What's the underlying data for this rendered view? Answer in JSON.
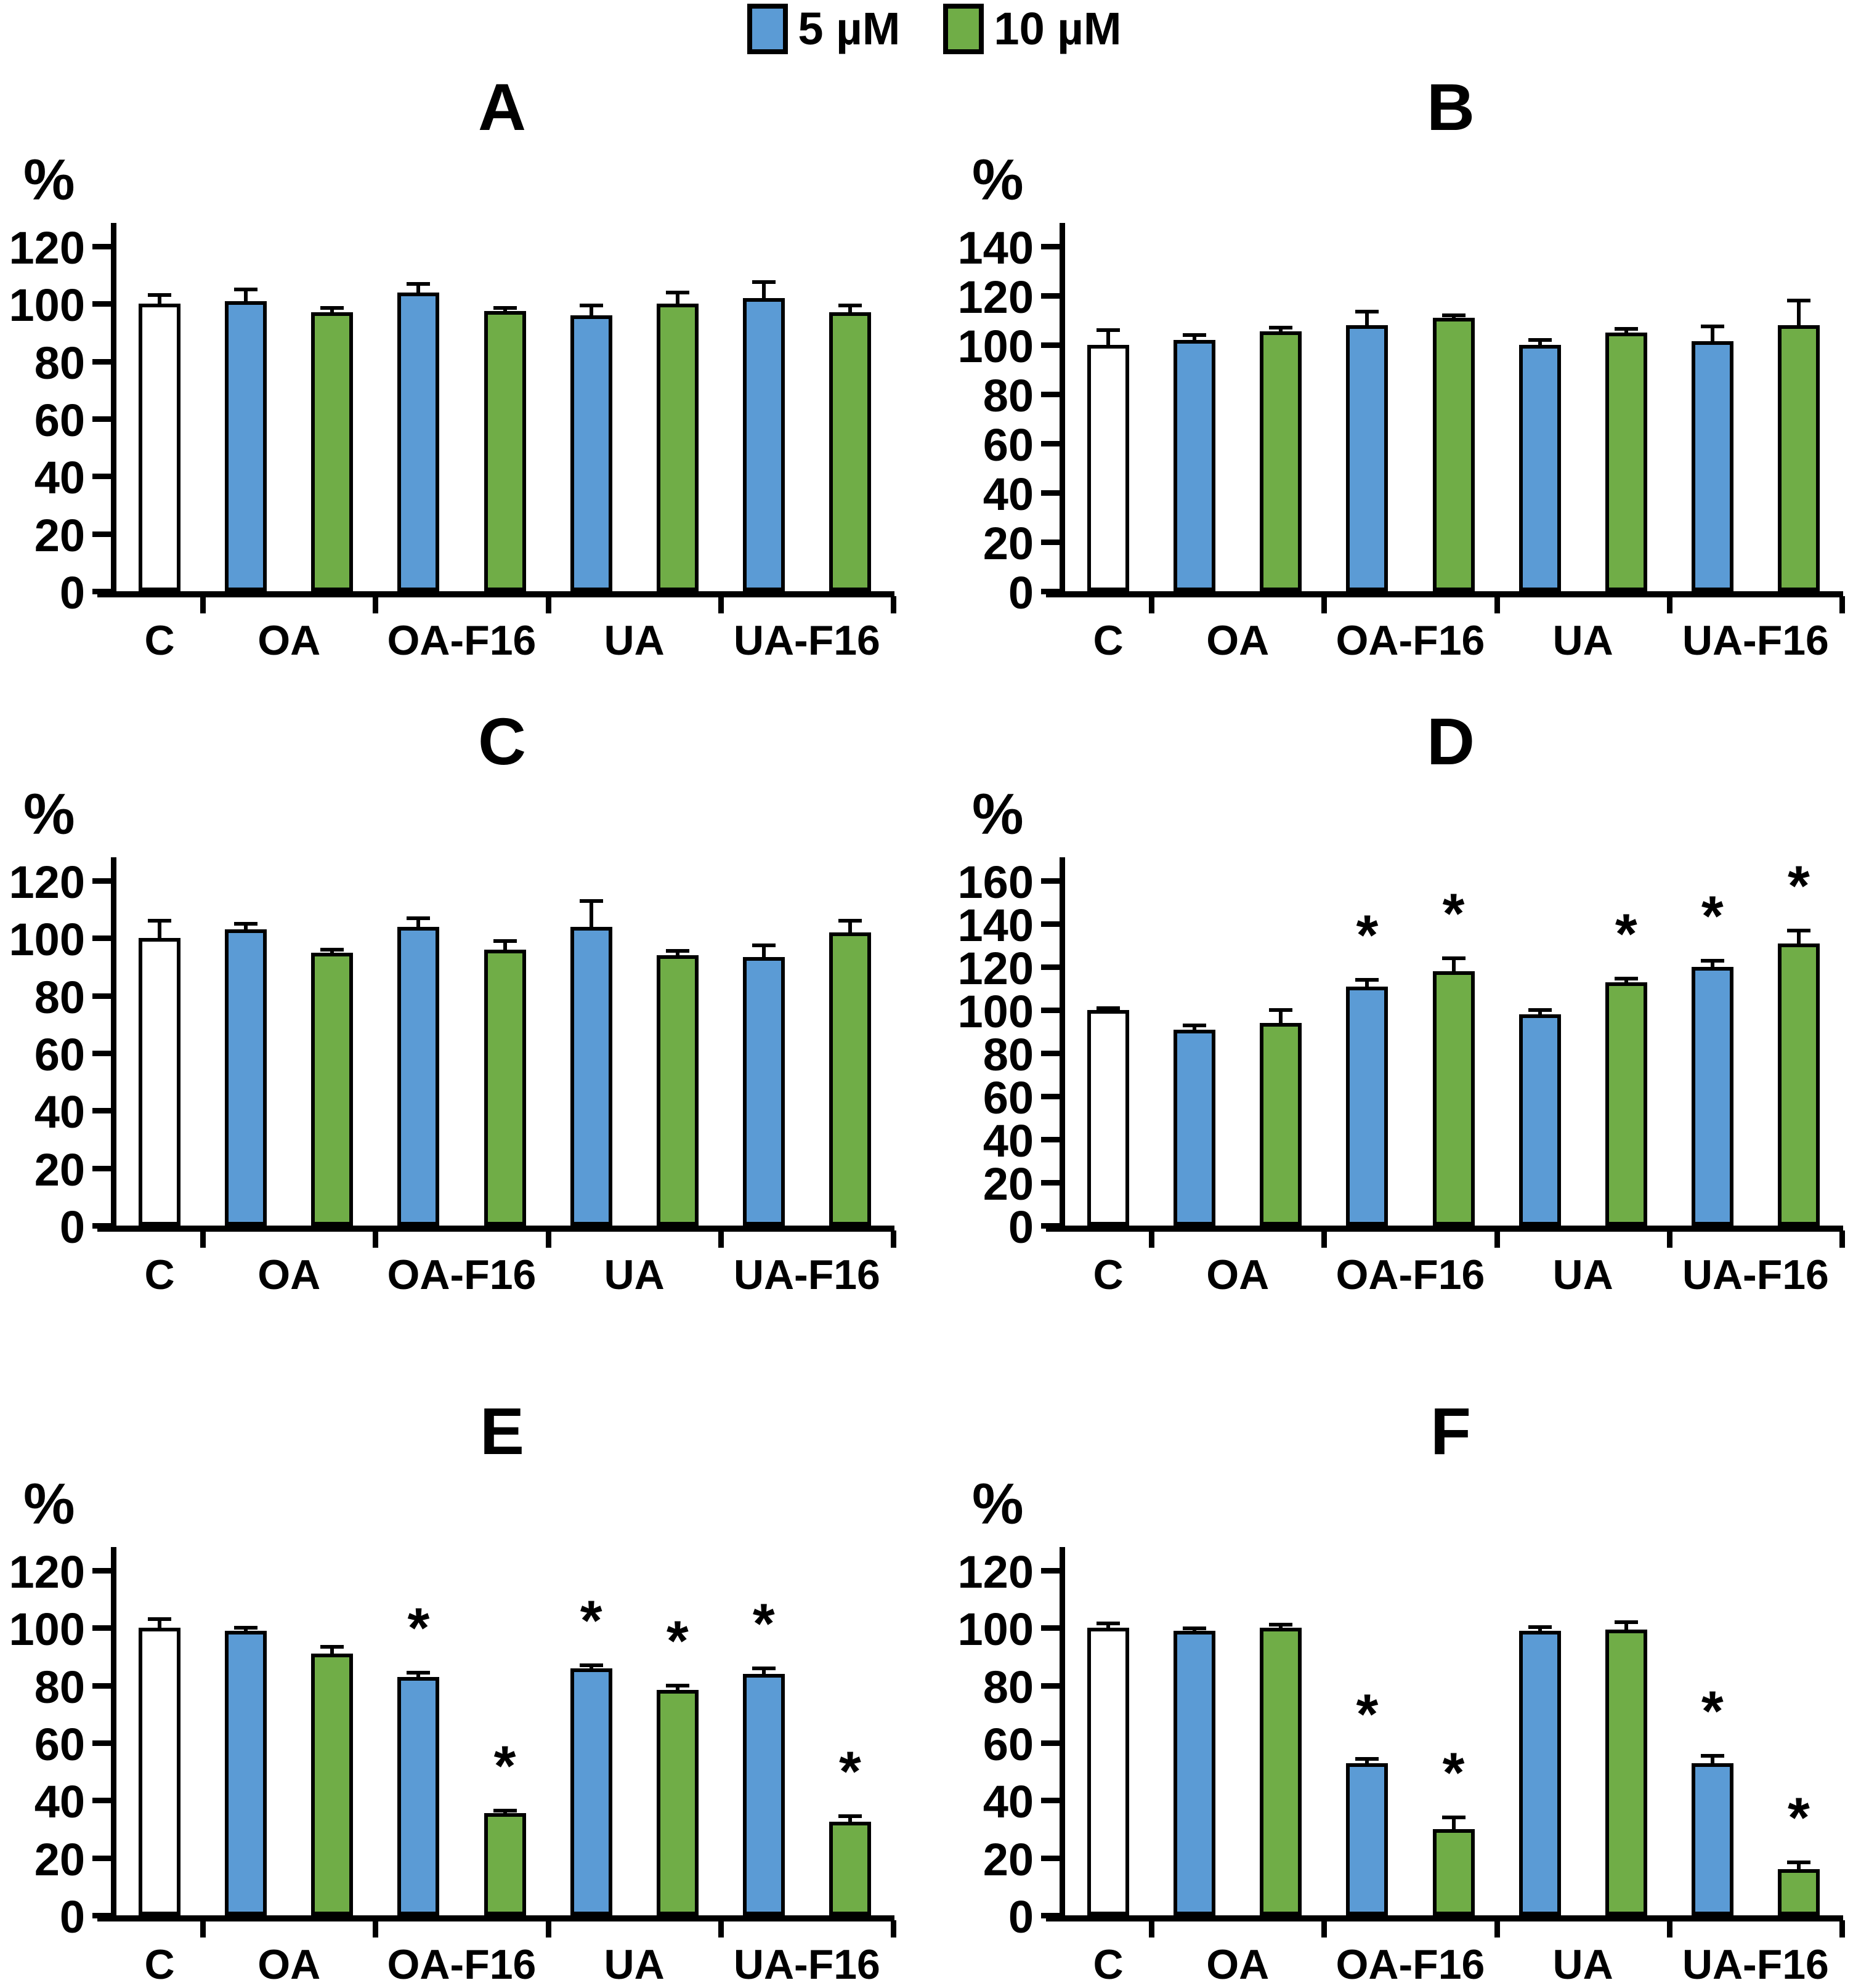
{
  "figure": {
    "ylabel_symbol": "%",
    "sig_marker": "*"
  },
  "colors": {
    "blue": "#5B9BD5",
    "green": "#70AD47",
    "control": "#FFFFFF",
    "axis": "#000000"
  },
  "series_colors": {
    "control": "#FFFFFF",
    "5 µM": "#5B9BD5",
    "10 µM": "#70AD47"
  },
  "legend": {
    "position": "top-center",
    "items": [
      {
        "label": "5 µM",
        "color": "#5B9BD5"
      },
      {
        "label": "10 µM",
        "color": "#70AD47"
      }
    ]
  },
  "chart_data": [
    {
      "type": "bar",
      "title": "A",
      "ylabel": "%",
      "ylim": [
        0,
        120
      ],
      "yticks": [
        0,
        20,
        40,
        60,
        80,
        100,
        120
      ],
      "grid": false,
      "categories": [
        "C",
        "OA",
        "OA-F16",
        "UA",
        "UA-F16"
      ],
      "groups": [
        {
          "label": "C",
          "bars": [
            {
              "series": "control",
              "value": 100,
              "error": 3,
              "sig": false
            }
          ]
        },
        {
          "label": "OA",
          "bars": [
            {
              "series": "5 µM",
              "value": 101,
              "error": 4,
              "sig": false
            },
            {
              "series": "10 µM",
              "value": 97,
              "error": 1.5,
              "sig": false
            }
          ]
        },
        {
          "label": "OA-F16",
          "bars": [
            {
              "series": "5 µM",
              "value": 104,
              "error": 3,
              "sig": false
            },
            {
              "series": "10 µM",
              "value": 97.5,
              "error": 1,
              "sig": false
            }
          ]
        },
        {
          "label": "UA",
          "bars": [
            {
              "series": "5 µM",
              "value": 96,
              "error": 3.5,
              "sig": false
            },
            {
              "series": "10 µM",
              "value": 100,
              "error": 4,
              "sig": false
            }
          ]
        },
        {
          "label": "UA-F16",
          "bars": [
            {
              "series": "5 µM",
              "value": 102,
              "error": 5.5,
              "sig": false
            },
            {
              "series": "10 µM",
              "value": 97,
              "error": 2.5,
              "sig": false
            }
          ]
        }
      ]
    },
    {
      "type": "bar",
      "title": "B",
      "ylabel": "%",
      "ylim": [
        0,
        140
      ],
      "yticks": [
        0,
        20,
        40,
        60,
        80,
        100,
        120,
        140
      ],
      "grid": false,
      "categories": [
        "C",
        "OA",
        "OA-F16",
        "UA",
        "UA-F16"
      ],
      "groups": [
        {
          "label": "C",
          "bars": [
            {
              "series": "control",
              "value": 100,
              "error": 6,
              "sig": false
            }
          ]
        },
        {
          "label": "OA",
          "bars": [
            {
              "series": "5 µM",
              "value": 102,
              "error": 2,
              "sig": false
            },
            {
              "series": "10 µM",
              "value": 105.5,
              "error": 1.5,
              "sig": false
            }
          ]
        },
        {
          "label": "OA-F16",
          "bars": [
            {
              "series": "5 µM",
              "value": 108,
              "error": 5.5,
              "sig": false
            },
            {
              "series": "10 µM",
              "value": 111,
              "error": 1,
              "sig": false
            }
          ]
        },
        {
          "label": "UA",
          "bars": [
            {
              "series": "5 µM",
              "value": 100,
              "error": 2,
              "sig": false
            },
            {
              "series": "10 µM",
              "value": 105,
              "error": 1.5,
              "sig": false
            }
          ]
        },
        {
          "label": "UA-F16",
          "bars": [
            {
              "series": "5 µM",
              "value": 101.5,
              "error": 6,
              "sig": false
            },
            {
              "series": "10 µM",
              "value": 108,
              "error": 10,
              "sig": false
            }
          ]
        }
      ]
    },
    {
      "type": "bar",
      "title": "C",
      "ylabel": "%",
      "ylim": [
        0,
        120
      ],
      "yticks": [
        0,
        20,
        40,
        60,
        80,
        100,
        120
      ],
      "grid": false,
      "categories": [
        "C",
        "OA",
        "OA-F16",
        "UA",
        "UA-F16"
      ],
      "groups": [
        {
          "label": "C",
          "bars": [
            {
              "series": "control",
              "value": 100,
              "error": 6,
              "sig": false
            }
          ]
        },
        {
          "label": "OA",
          "bars": [
            {
              "series": "5 µM",
              "value": 103,
              "error": 2,
              "sig": false
            },
            {
              "series": "10 µM",
              "value": 95,
              "error": 1,
              "sig": false
            }
          ]
        },
        {
          "label": "OA-F16",
          "bars": [
            {
              "series": "5 µM",
              "value": 104,
              "error": 3,
              "sig": false
            },
            {
              "series": "10 µM",
              "value": 96,
              "error": 3,
              "sig": false
            }
          ]
        },
        {
          "label": "UA",
          "bars": [
            {
              "series": "5 µM",
              "value": 104,
              "error": 9,
              "sig": false
            },
            {
              "series": "10 µM",
              "value": 94,
              "error": 1.5,
              "sig": false
            }
          ]
        },
        {
          "label": "UA-F16",
          "bars": [
            {
              "series": "5 µM",
              "value": 93.5,
              "error": 4,
              "sig": false
            },
            {
              "series": "10 µM",
              "value": 102,
              "error": 4,
              "sig": false
            }
          ]
        }
      ]
    },
    {
      "type": "bar",
      "title": "D",
      "ylabel": "%",
      "ylim": [
        0,
        160
      ],
      "yticks": [
        0,
        20,
        40,
        60,
        80,
        100,
        120,
        140,
        160
      ],
      "grid": false,
      "categories": [
        "C",
        "OA",
        "OA-F16",
        "UA",
        "UA-F16"
      ],
      "groups": [
        {
          "label": "C",
          "bars": [
            {
              "series": "control",
              "value": 100,
              "error": 1,
              "sig": false
            }
          ]
        },
        {
          "label": "OA",
          "bars": [
            {
              "series": "5 µM",
              "value": 91,
              "error": 2,
              "sig": false
            },
            {
              "series": "10 µM",
              "value": 94,
              "error": 6,
              "sig": false
            }
          ]
        },
        {
          "label": "OA-F16",
          "bars": [
            {
              "series": "5 µM",
              "value": 111,
              "error": 3,
              "sig": true
            },
            {
              "series": "10 µM",
              "value": 118,
              "error": 6,
              "sig": true
            }
          ]
        },
        {
          "label": "UA",
          "bars": [
            {
              "series": "5 µM",
              "value": 98,
              "error": 2,
              "sig": false
            },
            {
              "series": "10 µM",
              "value": 113,
              "error": 1.5,
              "sig": true
            }
          ]
        },
        {
          "label": "UA-F16",
          "bars": [
            {
              "series": "5 µM",
              "value": 120,
              "error": 3,
              "sig": true
            },
            {
              "series": "10 µM",
              "value": 131,
              "error": 6,
              "sig": true
            }
          ]
        }
      ]
    },
    {
      "type": "bar",
      "title": "E",
      "ylabel": "%",
      "ylim": [
        0,
        120
      ],
      "yticks": [
        0,
        20,
        40,
        60,
        80,
        100,
        120
      ],
      "grid": false,
      "categories": [
        "C",
        "OA",
        "OA-F16",
        "UA",
        "UA-F16"
      ],
      "groups": [
        {
          "label": "C",
          "bars": [
            {
              "series": "control",
              "value": 100,
              "error": 3,
              "sig": false
            }
          ]
        },
        {
          "label": "OA",
          "bars": [
            {
              "series": "5 µM",
              "value": 99,
              "error": 1,
              "sig": false
            },
            {
              "series": "10 µM",
              "value": 91,
              "error": 2.5,
              "sig": false
            }
          ]
        },
        {
          "label": "OA-F16",
          "bars": [
            {
              "series": "5 µM",
              "value": 83,
              "error": 1.5,
              "sig": true
            },
            {
              "series": "10 µM",
              "value": 35.5,
              "error": 1,
              "sig": true
            }
          ]
        },
        {
          "label": "UA",
          "bars": [
            {
              "series": "5 µM",
              "value": 86,
              "error": 1,
              "sig": true
            },
            {
              "series": "10 µM",
              "value": 78.5,
              "error": 1.5,
              "sig": true
            }
          ]
        },
        {
          "label": "UA-F16",
          "bars": [
            {
              "series": "5 µM",
              "value": 84,
              "error": 2,
              "sig": true
            },
            {
              "series": "10 µM",
              "value": 32.5,
              "error": 2,
              "sig": true
            }
          ]
        }
      ]
    },
    {
      "type": "bar",
      "title": "F",
      "ylabel": "%",
      "ylim": [
        0,
        120
      ],
      "yticks": [
        0,
        20,
        40,
        60,
        80,
        100,
        120
      ],
      "grid": false,
      "categories": [
        "C",
        "OA",
        "OA-F16",
        "UA",
        "UA-F16"
      ],
      "groups": [
        {
          "label": "C",
          "bars": [
            {
              "series": "control",
              "value": 100,
              "error": 1.5,
              "sig": false
            }
          ]
        },
        {
          "label": "OA",
          "bars": [
            {
              "series": "5 µM",
              "value": 99,
              "error": 0.8,
              "sig": false
            },
            {
              "series": "10 µM",
              "value": 100,
              "error": 1.2,
              "sig": false
            }
          ]
        },
        {
          "label": "OA-F16",
          "bars": [
            {
              "series": "5 µM",
              "value": 53,
              "error": 1.5,
              "sig": true
            },
            {
              "series": "10 µM",
              "value": 30,
              "error": 4,
              "sig": true
            }
          ]
        },
        {
          "label": "UA",
          "bars": [
            {
              "series": "5 µM",
              "value": 99,
              "error": 1.2,
              "sig": false
            },
            {
              "series": "10 µM",
              "value": 99.5,
              "error": 2.5,
              "sig": false
            }
          ]
        },
        {
          "label": "UA-F16",
          "bars": [
            {
              "series": "5 µM",
              "value": 53,
              "error": 2.5,
              "sig": true
            },
            {
              "series": "10 µM",
              "value": 16,
              "error": 2.5,
              "sig": true
            }
          ]
        }
      ]
    }
  ]
}
